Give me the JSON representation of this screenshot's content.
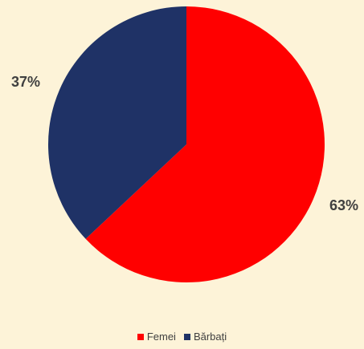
{
  "chart_data": {
    "type": "pie",
    "title": "",
    "start_angle_deg": 0,
    "direction": "clockwise",
    "slices": [
      {
        "name": "Femei",
        "value": 63,
        "label": "63%",
        "color": "#ff0000"
      },
      {
        "name": "Bărbați",
        "value": 37,
        "label": "37%",
        "color": "#1f3266"
      }
    ],
    "legend": {
      "position": "bottom",
      "items": [
        {
          "label": "Femei",
          "color": "#ff0000"
        },
        {
          "label": "Bărbați",
          "color": "#1f3266"
        }
      ]
    }
  },
  "colors": {
    "background": "#fdf3d8",
    "label_text": "#404040"
  }
}
